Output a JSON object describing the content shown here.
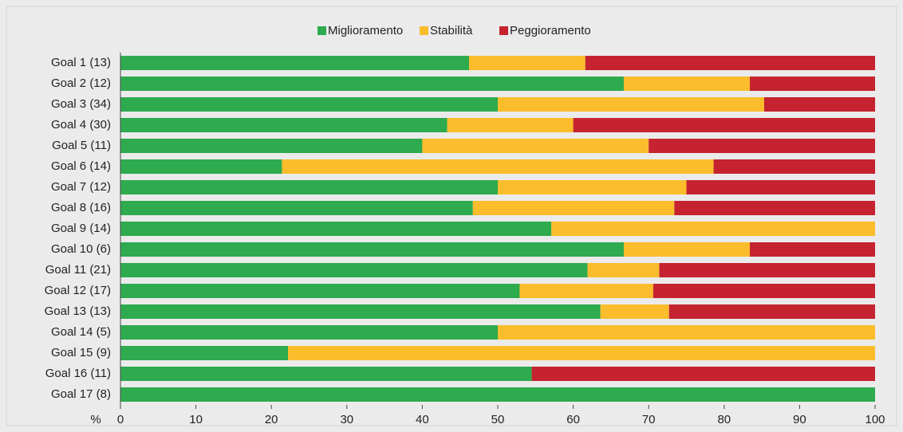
{
  "chart_data": {
    "type": "stacked_bar_horizontal",
    "x_label": "%",
    "categories": [
      "Goal 1 (13)",
      "Goal 2 (12)",
      "Goal 3 (34)",
      "Goal 4 (30)",
      "Goal 5 (11)",
      "Goal 6 (14)",
      "Goal 7 (12)",
      "Goal 8 (16)",
      "Goal 9 (14)",
      "Goal 10 (6)",
      "Goal 11 (21)",
      "Goal 12 (17)",
      "Goal 13 (13)",
      "Goal 14 (5)",
      "Goal 15 (9)",
      "Goal 16 (11)",
      "Goal 17 (8)"
    ],
    "series": [
      {
        "name": "Miglioramento",
        "color": "#2eaa4f",
        "values": [
          46.2,
          66.7,
          50,
          43.3,
          40,
          21.4,
          50,
          46.7,
          57.1,
          66.7,
          61.9,
          52.9,
          63.6,
          50,
          22.2,
          54.5,
          100
        ]
      },
      {
        "name": "Stabilità",
        "color": "#fbbd2c",
        "values": [
          15.4,
          16.7,
          35.3,
          16.7,
          30,
          57.2,
          25,
          26.7,
          42.9,
          16.7,
          9.5,
          17.7,
          9.1,
          50,
          77.8,
          0,
          0
        ]
      },
      {
        "name": "Peggioramento",
        "color": "#c52330",
        "values": [
          38.4,
          16.6,
          14.7,
          40,
          30,
          21.4,
          25,
          26.6,
          0,
          16.6,
          28.6,
          29.4,
          27.3,
          0,
          0,
          45.5,
          0
        ]
      }
    ],
    "xlim": [
      0,
      100
    ],
    "xticks": [
      0,
      10,
      20,
      30,
      40,
      50,
      60,
      70,
      80,
      90,
      100
    ],
    "legend": "top"
  }
}
